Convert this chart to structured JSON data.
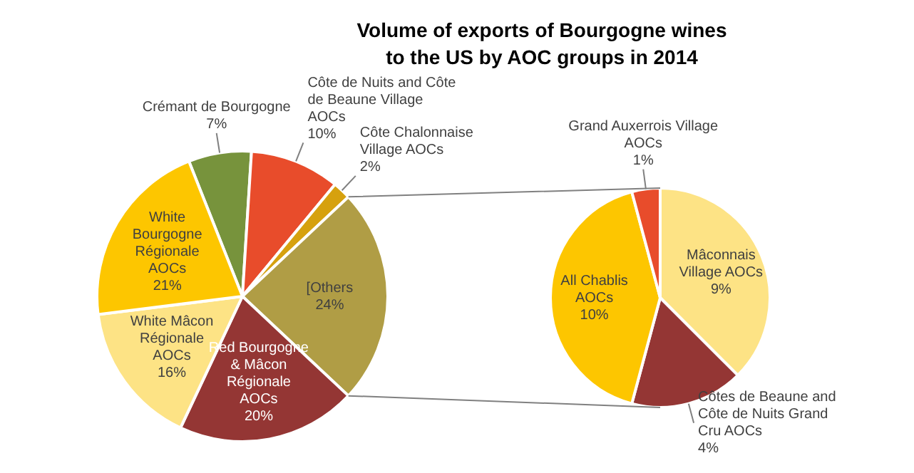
{
  "chart_data": [
    {
      "type": "pie",
      "title": "Volume of exports of Bourgogne wines\nto the US by AOC groups in 2014",
      "categories": [
        "Crémant de Bourgogne",
        "Côte de Nuits and Côte de Beaune Village AOCs",
        "Côte Chalonnaise Village AOCs",
        "[Others",
        "Red Bourgogne & Mâcon Régionale AOCs",
        "White Mâcon Régionale AOCs",
        "White Bourgogne Régionale AOCs"
      ],
      "values": [
        7,
        10,
        2,
        24,
        20,
        16,
        21
      ],
      "colors": [
        "#77933c",
        "#e84c2b",
        "#d6a10e",
        "#b09d45",
        "#943634",
        "#fde385",
        "#fdc600"
      ],
      "value_labels": [
        "7%",
        "10%",
        "2%",
        "24%",
        "20%",
        "16%",
        "21%"
      ],
      "legend": false
    },
    {
      "type": "pie",
      "categories": [
        "Mâconnais Village AOCs",
        "Côtes de Beaune and Côte de Nuits Grand Cru AOCs",
        "All Chablis AOCs",
        "Grand Auxerrois Village AOCs"
      ],
      "values": [
        9,
        4,
        10,
        1
      ],
      "colors": [
        "#fde385",
        "#943634",
        "#fdc600",
        "#e84c2b"
      ],
      "value_labels": [
        "9%",
        "4%",
        "10%",
        "1%"
      ],
      "legend": false
    }
  ]
}
